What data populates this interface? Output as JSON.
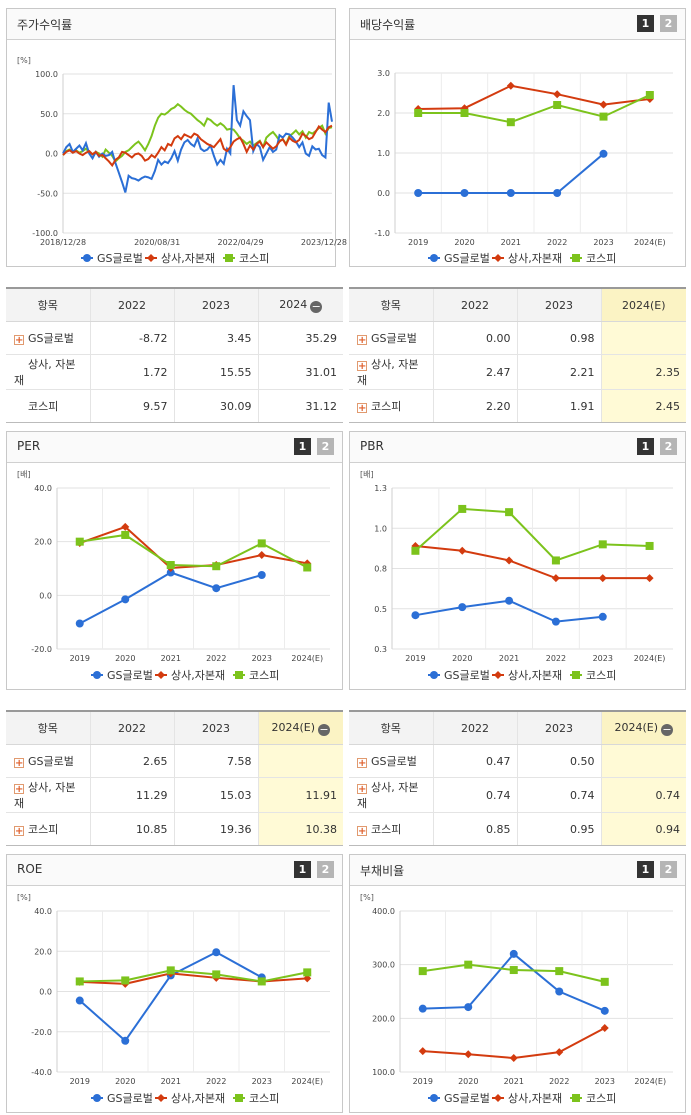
{
  "legend": {
    "gs": "GS글로벌",
    "sector": "상사,자본재",
    "kospi": "코스피",
    "gs_color": "#2b6fd6",
    "sector_color": "#d33b0f",
    "kospi_color": "#7cc31c"
  },
  "page_buttons": [
    "1",
    "2"
  ],
  "tables": [
    {
      "headers": [
        "항목",
        "2022",
        "2023",
        "2024"
      ],
      "has_minus": true,
      "rows": [
        {
          "label": "GS글로벌",
          "plus": true,
          "v": [
            "-8.72",
            "3.45",
            "35.29"
          ]
        },
        {
          "label": "상사, 자본재",
          "plus": false,
          "v": [
            "1.72",
            "15.55",
            "31.01"
          ]
        },
        {
          "label": "코스피",
          "plus": false,
          "v": [
            "9.57",
            "30.09",
            "31.12"
          ]
        }
      ],
      "est_col": false
    },
    {
      "headers": [
        "항목",
        "2022",
        "2023",
        "2024(E)"
      ],
      "has_minus": false,
      "rows": [
        {
          "label": "GS글로벌",
          "plus": true,
          "v": [
            "0.00",
            "0.98",
            ""
          ]
        },
        {
          "label": "상사, 자본재",
          "plus": true,
          "v": [
            "2.47",
            "2.21",
            "2.35"
          ]
        },
        {
          "label": "코스피",
          "plus": true,
          "v": [
            "2.20",
            "1.91",
            "2.45"
          ]
        }
      ],
      "est_col": true
    },
    {
      "headers": [
        "항목",
        "2022",
        "2023",
        "2024(E)"
      ],
      "has_minus": true,
      "rows": [
        {
          "label": "GS글로벌",
          "plus": true,
          "v": [
            "2.65",
            "7.58",
            ""
          ]
        },
        {
          "label": "상사, 자본재",
          "plus": true,
          "v": [
            "11.29",
            "15.03",
            "11.91"
          ]
        },
        {
          "label": "코스피",
          "plus": true,
          "v": [
            "10.85",
            "19.36",
            "10.38"
          ]
        }
      ],
      "est_col": true
    },
    {
      "headers": [
        "항목",
        "2022",
        "2023",
        "2024(E)"
      ],
      "has_minus": true,
      "rows": [
        {
          "label": "GS글로벌",
          "plus": true,
          "v": [
            "0.47",
            "0.50",
            ""
          ]
        },
        {
          "label": "상사, 자본재",
          "plus": true,
          "v": [
            "0.74",
            "0.74",
            "0.74"
          ]
        },
        {
          "label": "코스피",
          "plus": true,
          "v": [
            "0.85",
            "0.95",
            "0.94"
          ]
        }
      ],
      "est_col": true
    }
  ],
  "chart_data": [
    {
      "title": "주가수익률",
      "type": "line",
      "unit": "[%]",
      "ylim": [
        -100,
        100
      ],
      "yticks": [
        "100.0",
        "50.0",
        "0.0",
        "-50.0",
        "-100.0"
      ],
      "xticks": [
        "2018/12/28",
        "2020/08/31",
        "2022/04/29",
        "2023/12/28"
      ],
      "series": [
        {
          "name": "GS글로벌",
          "values": [
            0,
            8,
            12,
            2,
            6,
            10,
            4,
            13,
            0,
            -6,
            2,
            -4,
            0,
            -3,
            -2,
            2,
            -12,
            -24,
            -36,
            -49,
            -28,
            -31,
            -32,
            -34,
            -31,
            -29,
            -30,
            -32,
            -22,
            -8,
            -14,
            -10,
            -12,
            -6,
            3,
            -9,
            5,
            14,
            17,
            12,
            9,
            19,
            6,
            3,
            5,
            10,
            -3,
            -14,
            -8,
            -13,
            6,
            0,
            86,
            42,
            35,
            53,
            47,
            42,
            3,
            12,
            8,
            -8,
            0,
            8,
            2,
            5,
            23,
            20,
            25,
            24,
            20,
            15,
            8,
            14,
            0,
            -3,
            9,
            5,
            6,
            -2,
            -5,
            64,
            40
          ]
        },
        {
          "name": "상사,자본재",
          "values": [
            -2,
            2,
            4,
            1,
            3,
            0,
            -2,
            1,
            3,
            -1,
            2,
            -3,
            -2,
            -6,
            -10,
            -15,
            -8,
            -5,
            2,
            1,
            -2,
            -5,
            -1,
            0,
            -3,
            -9,
            -7,
            -2,
            -5,
            1,
            8,
            4,
            12,
            10,
            19,
            22,
            18,
            24,
            22,
            20,
            25,
            23,
            18,
            15,
            12,
            10,
            8,
            13,
            18,
            6,
            3,
            8,
            15,
            18,
            20,
            12,
            2,
            10,
            5,
            12,
            15,
            8,
            14,
            10,
            6,
            9,
            15,
            18,
            11,
            20,
            16,
            14,
            17,
            25,
            22,
            18,
            20,
            27,
            34,
            30,
            27,
            33,
            35
          ]
        },
        {
          "name": "코스피",
          "values": [
            -2,
            3,
            5,
            2,
            4,
            1,
            3,
            6,
            2,
            -1,
            2,
            0,
            -4,
            5,
            1,
            -3,
            -10,
            -6,
            -3,
            2,
            4,
            8,
            12,
            15,
            10,
            4,
            12,
            22,
            35,
            45,
            50,
            49,
            52,
            56,
            58,
            62,
            59,
            55,
            52,
            50,
            46,
            42,
            39,
            35,
            44,
            42,
            38,
            35,
            38,
            35,
            30,
            31,
            30,
            25,
            19,
            16,
            12,
            15,
            10,
            13,
            16,
            8,
            20,
            24,
            27,
            22,
            16,
            18,
            12,
            22,
            25,
            29,
            24,
            28,
            20,
            27,
            25,
            28,
            32,
            35,
            25,
            32,
            33
          ]
        }
      ]
    },
    {
      "title": "배당수익률",
      "type": "line",
      "unit": "",
      "ylim": [
        -1,
        3
      ],
      "yticks": [
        "3.0",
        "2.0",
        "1.0",
        "0.0",
        "-1.0"
      ],
      "categories": [
        "2019",
        "2020",
        "2021",
        "2022",
        "2023",
        "2024(E)"
      ],
      "series": [
        {
          "name": "GS글로벌",
          "values": [
            0,
            0,
            0,
            0,
            0.98,
            null
          ]
        },
        {
          "name": "상사,자본재",
          "values": [
            2.1,
            2.12,
            2.68,
            2.47,
            2.21,
            2.35
          ]
        },
        {
          "name": "코스피",
          "values": [
            2.0,
            2.0,
            1.77,
            2.2,
            1.91,
            2.45
          ]
        }
      ]
    },
    {
      "title": "PER",
      "type": "line",
      "unit": "[배]",
      "ylim": [
        -20,
        40
      ],
      "yticks": [
        "40.0",
        "20.0",
        "0.0",
        "-20.0"
      ],
      "categories": [
        "2019",
        "2020",
        "2021",
        "2022",
        "2023",
        "2024(E)"
      ],
      "series": [
        {
          "name": "GS글로벌",
          "values": [
            -10.5,
            -1.5,
            8.5,
            2.65,
            7.58,
            null
          ]
        },
        {
          "name": "상사,자본재",
          "values": [
            19.5,
            25.5,
            10.2,
            11.29,
            15.03,
            11.91
          ]
        },
        {
          "name": "코스피",
          "values": [
            20.0,
            22.5,
            11.3,
            10.85,
            19.36,
            10.38
          ]
        }
      ]
    },
    {
      "title": "PBR",
      "type": "line",
      "unit": "[배]",
      "ylim": [
        0.3,
        1.3
      ],
      "yticks": [
        "1.3",
        "1.0",
        "0.8",
        "0.5",
        "0.3"
      ],
      "categories": [
        "2019",
        "2020",
        "2021",
        "2022",
        "2023",
        "2024(E)"
      ],
      "series": [
        {
          "name": "GS글로벌",
          "values": [
            0.51,
            0.56,
            0.6,
            0.47,
            0.5,
            null
          ]
        },
        {
          "name": "상사,자본재",
          "values": [
            0.94,
            0.91,
            0.85,
            0.74,
            0.74,
            0.74
          ]
        },
        {
          "name": "코스피",
          "values": [
            0.91,
            1.17,
            1.15,
            0.85,
            0.95,
            0.94
          ]
        }
      ]
    },
    {
      "title": "ROE",
      "type": "line",
      "unit": "[%]",
      "ylim": [
        -40,
        40
      ],
      "yticks": [
        "40.0",
        "20.0",
        "0.0",
        "-20.0",
        "-40.0"
      ],
      "categories": [
        "2019",
        "2020",
        "2021",
        "2022",
        "2023",
        "2024(E)"
      ],
      "series": [
        {
          "name": "GS글로벌",
          "values": [
            -4.5,
            -24.5,
            8.0,
            19.5,
            7.0,
            null
          ]
        },
        {
          "name": "상사,자본재",
          "values": [
            4.8,
            3.8,
            9.0,
            6.8,
            5.0,
            6.5
          ]
        },
        {
          "name": "코스피",
          "values": [
            5.0,
            5.5,
            10.5,
            8.5,
            5.0,
            9.5
          ]
        }
      ]
    },
    {
      "title": "부채비율",
      "type": "line",
      "unit": "[%]",
      "ylim": [
        100,
        400
      ],
      "yticks": [
        "400.0",
        "300.0",
        "200.0",
        "100.0"
      ],
      "categories": [
        "2019",
        "2020",
        "2021",
        "2022",
        "2023",
        "2024(E)"
      ],
      "series": [
        {
          "name": "GS글로벌",
          "values": [
            218,
            221,
            320,
            250,
            214,
            null
          ]
        },
        {
          "name": "상사,자본재",
          "values": [
            139,
            133,
            126,
            137,
            182,
            null
          ]
        },
        {
          "name": "코스피",
          "values": [
            288,
            300,
            290,
            288,
            268,
            null
          ]
        }
      ]
    }
  ]
}
